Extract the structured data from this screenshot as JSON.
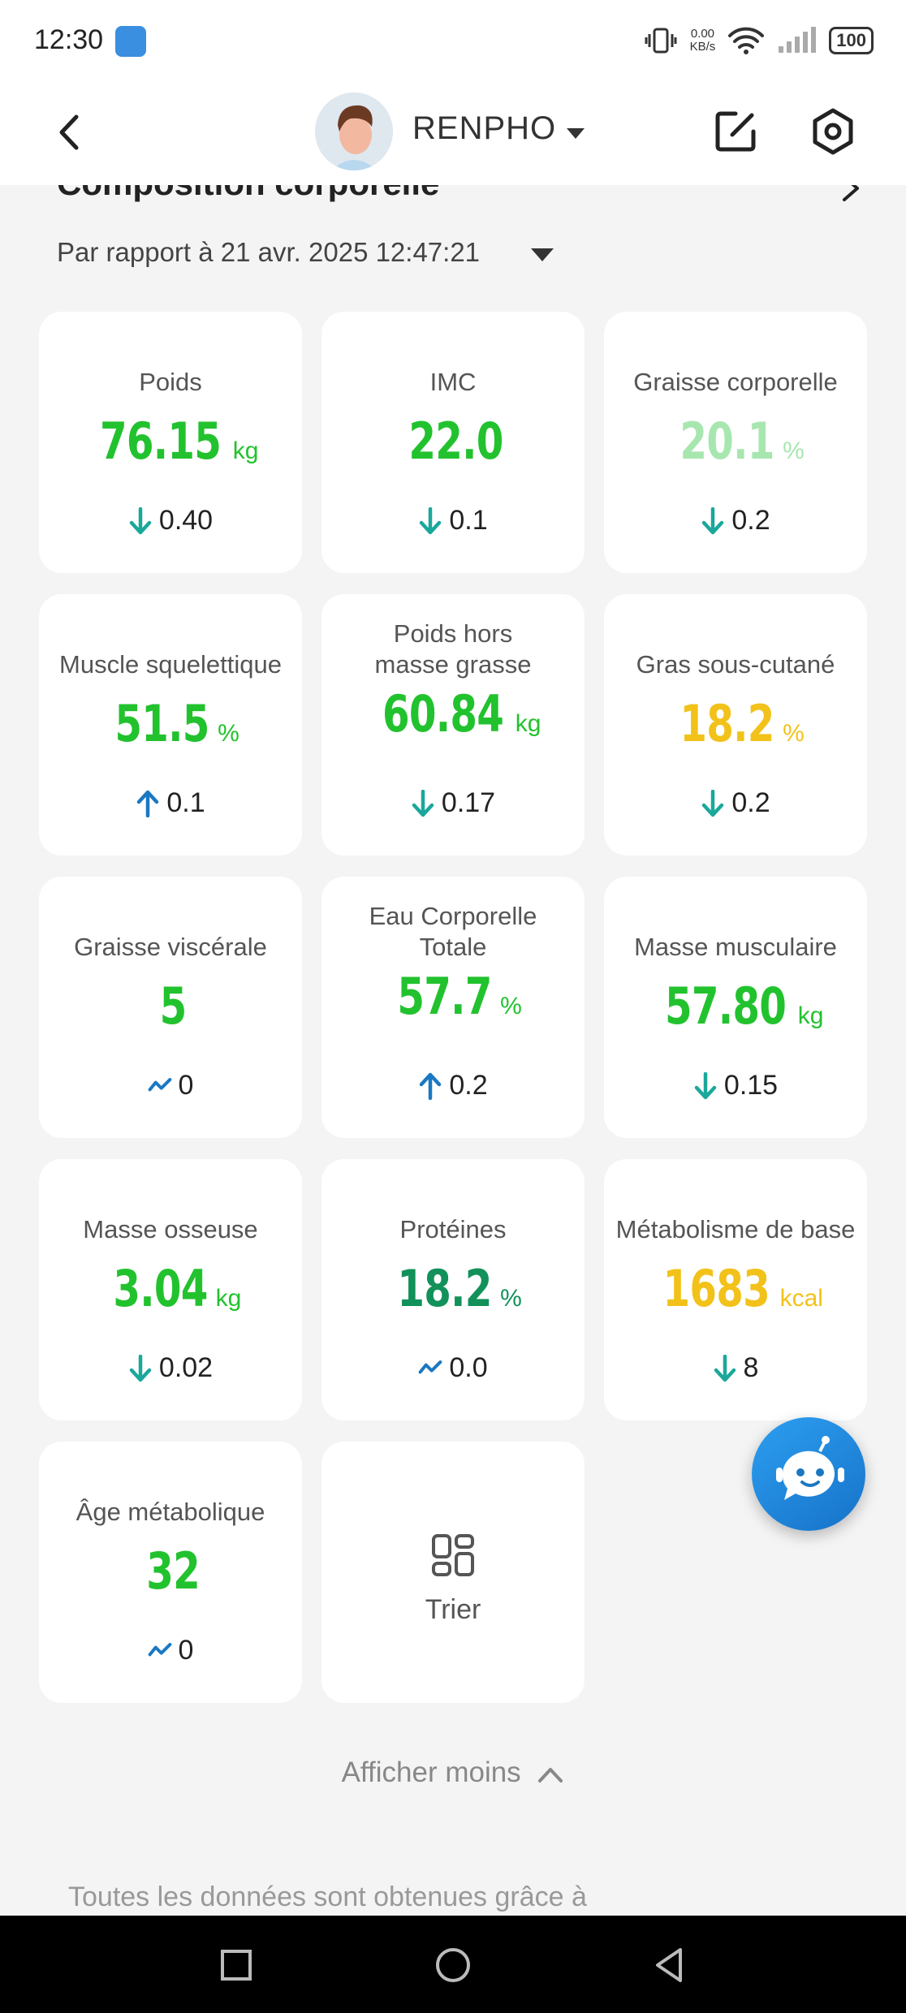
{
  "status_bar": {
    "time": "12:30",
    "net_speed_value": "0.00",
    "net_speed_unit": "KB/s",
    "battery": "100"
  },
  "header": {
    "profile_name": "RENPHO"
  },
  "section": {
    "title": "Composition corporelle",
    "compare_text": "Par rapport à 21 avr. 2025 12:47:21"
  },
  "colors": {
    "green": "#22c22e",
    "light_green": "#a8e6b0",
    "yellow": "#f2c21a",
    "dark_green": "#12915a",
    "teal_arrow": "#1aa89b",
    "blue_arrow": "#1a78c2"
  },
  "metrics": [
    {
      "label": "Poids",
      "value": "76.15",
      "unit": "kg",
      "color": "#22c22e",
      "change_dir": "down",
      "change": "0.40"
    },
    {
      "label": "IMC",
      "value": "22.0",
      "unit": "",
      "color": "#22c22e",
      "change_dir": "down",
      "change": "0.1"
    },
    {
      "label": "Graisse corporelle",
      "value": "20.1",
      "unit": "%",
      "color": "#a8e6b0",
      "change_dir": "down",
      "change": "0.2"
    },
    {
      "label": "Muscle squelettique",
      "value": "51.5",
      "unit": "%",
      "color": "#22c22e",
      "change_dir": "up",
      "change": "0.1"
    },
    {
      "label": "Poids hors masse grasse",
      "value": "60.84",
      "unit": "kg",
      "color": "#22c22e",
      "change_dir": "down",
      "change": "0.17"
    },
    {
      "label": "Gras sous-cutané",
      "value": "18.2",
      "unit": "%",
      "color": "#f2c21a",
      "change_dir": "down",
      "change": "0.2"
    },
    {
      "label": "Graisse viscérale",
      "value": "5",
      "unit": "",
      "color": "#22c22e",
      "change_dir": "same",
      "change": "0"
    },
    {
      "label": "Eau Corporelle Totale",
      "value": "57.7",
      "unit": "%",
      "color": "#22c22e",
      "change_dir": "up",
      "change": "0.2"
    },
    {
      "label": "Masse musculaire",
      "value": "57.80",
      "unit": "kg",
      "color": "#22c22e",
      "change_dir": "down",
      "change": "0.15"
    },
    {
      "label": "Masse osseuse",
      "value": "3.04",
      "unit": "kg",
      "color": "#22c22e",
      "change_dir": "down",
      "change": "0.02"
    },
    {
      "label": "Protéines",
      "value": "18.2",
      "unit": "%",
      "color": "#12915a",
      "change_dir": "same",
      "change": "0.0"
    },
    {
      "label": "Métabolisme de base",
      "value": "1683",
      "unit": "kcal",
      "color": "#f2c21a",
      "change_dir": "down",
      "change": "8"
    },
    {
      "label": "Âge métabolique",
      "value": "32",
      "unit": "",
      "color": "#22c22e",
      "change_dir": "same",
      "change": "0"
    }
  ],
  "sort_card": {
    "label": "Trier"
  },
  "show_less": "Afficher moins",
  "footer_note": "Toutes les données sont obtenues grâce à"
}
